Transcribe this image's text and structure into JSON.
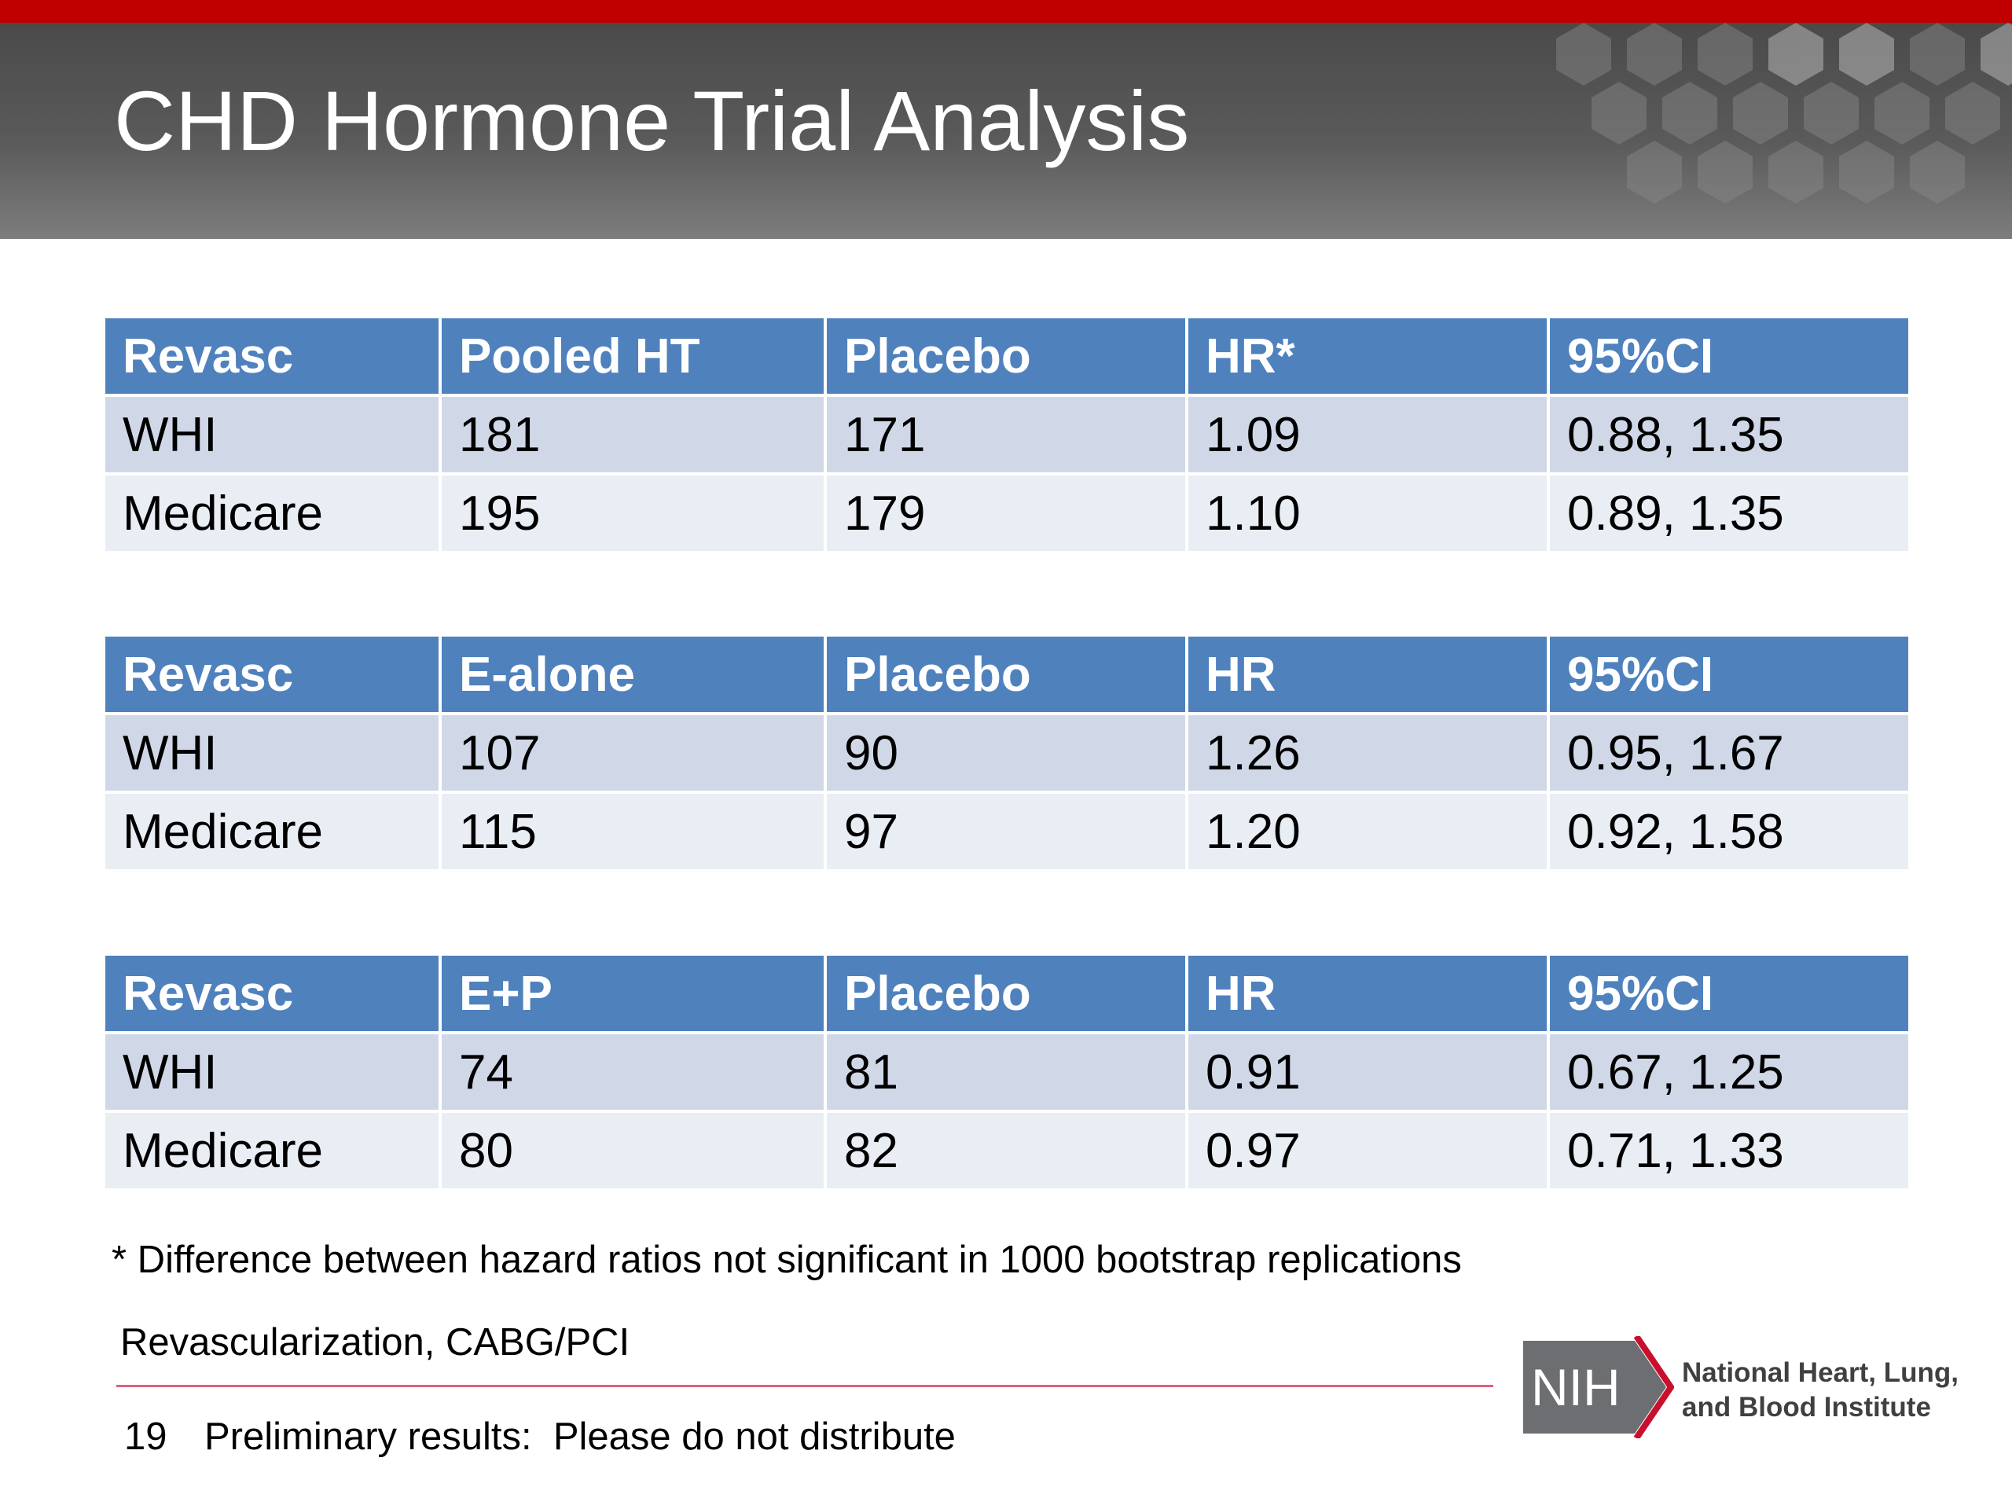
{
  "slide": {
    "title": "CHD Hormone Trial Analysis",
    "footnote": "* Difference between hazard ratios not significant in 1000 bootstrap replications",
    "abbreviation": "Revascularization, CABG/PCI",
    "page_number": "19",
    "footer_text": "Preliminary results:  Please do not distribute"
  },
  "colors": {
    "top_bar": "#c00000",
    "header_bg": "#5a5a5a",
    "table_header": "#4f81bd",
    "row_odd": "#d0d8e8",
    "row_even": "#e9edf4",
    "footer_rule": "#e0607a"
  },
  "tables": [
    {
      "headers": [
        "Revasc",
        "Pooled HT",
        "Placebo",
        "HR*",
        "95%CI"
      ],
      "rows": [
        [
          "WHI",
          "181",
          "171",
          "1.09",
          "0.88, 1.35"
        ],
        [
          "Medicare",
          "195",
          "179",
          "1.10",
          "0.89, 1.35"
        ]
      ]
    },
    {
      "headers": [
        "Revasc",
        "E-alone",
        "Placebo",
        "HR",
        "95%CI"
      ],
      "rows": [
        [
          "WHI",
          "107",
          "90",
          "1.26",
          "0.95, 1.67"
        ],
        [
          "Medicare",
          "115",
          "97",
          "1.20",
          "0.92, 1.58"
        ]
      ]
    },
    {
      "headers": [
        "Revasc",
        "E+P",
        "Placebo",
        "HR",
        "95%CI"
      ],
      "rows": [
        [
          "WHI",
          "74",
          "81",
          "0.91",
          "0.67, 1.25"
        ],
        [
          "Medicare",
          "80",
          "82",
          "0.97",
          "0.71, 1.33"
        ]
      ]
    }
  ],
  "logo": {
    "mark": "NIH",
    "line1": "National Heart, Lung,",
    "line2": "and Blood Institute"
  }
}
